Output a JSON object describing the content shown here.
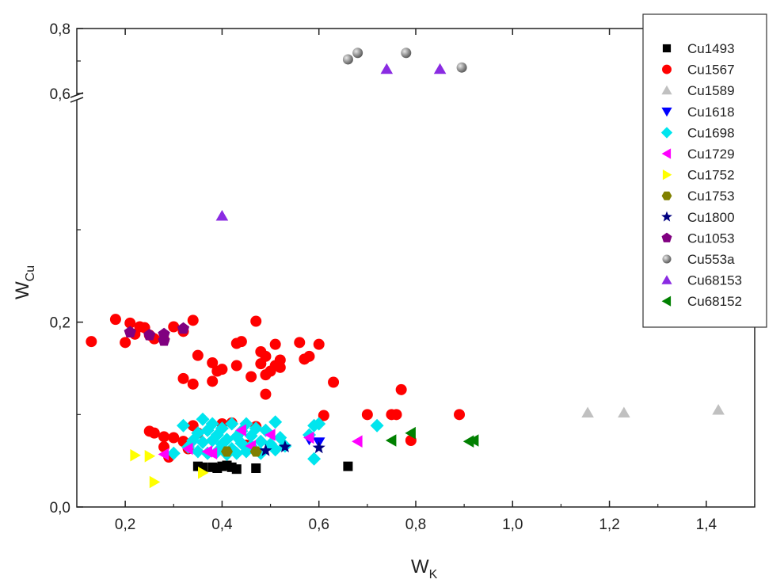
{
  "chart_data": {
    "type": "scatter",
    "xlabel": {
      "main": "W",
      "sub": "K"
    },
    "ylabel": {
      "main": "W",
      "sub": "Cu"
    },
    "xlim": [
      0.1,
      1.5
    ],
    "ylim_lower": [
      0.0,
      0.42
    ],
    "ylim_upper": [
      0.6,
      0.8
    ],
    "axis_break_y": 0.6,
    "x_ticks": [
      "0,2",
      "0,4",
      "0,6",
      "0,8",
      "1,0",
      "1,2",
      "1,4"
    ],
    "x_tick_values": [
      0.2,
      0.4,
      0.6,
      0.8,
      1.0,
      1.2,
      1.4
    ],
    "y_ticks": [
      "0,0",
      "0,2",
      "0,6",
      "0,8"
    ],
    "y_tick_values": [
      0.0,
      0.2,
      0.6,
      0.8
    ],
    "grid": false,
    "legend_position": "top-right",
    "series": [
      {
        "name": "Cu1493",
        "marker": "square",
        "color": "#000000",
        "points": [
          [
            0.35,
            0.044
          ],
          [
            0.36,
            0.043
          ],
          [
            0.38,
            0.043
          ],
          [
            0.39,
            0.042
          ],
          [
            0.4,
            0.044
          ],
          [
            0.41,
            0.045
          ],
          [
            0.42,
            0.043
          ],
          [
            0.43,
            0.041
          ],
          [
            0.47,
            0.042
          ],
          [
            0.66,
            0.044
          ]
        ]
      },
      {
        "name": "Cu1567",
        "marker": "circle",
        "color": "#ff0000",
        "points": [
          [
            0.13,
            0.179
          ],
          [
            0.18,
            0.203
          ],
          [
            0.2,
            0.178
          ],
          [
            0.21,
            0.199
          ],
          [
            0.22,
            0.187
          ],
          [
            0.23,
            0.195
          ],
          [
            0.24,
            0.194
          ],
          [
            0.25,
            0.186
          ],
          [
            0.26,
            0.182
          ],
          [
            0.28,
            0.181
          ],
          [
            0.3,
            0.195
          ],
          [
            0.32,
            0.19
          ],
          [
            0.34,
            0.202
          ],
          [
            0.35,
            0.164
          ],
          [
            0.38,
            0.156
          ],
          [
            0.39,
            0.147
          ],
          [
            0.4,
            0.149
          ],
          [
            0.32,
            0.139
          ],
          [
            0.34,
            0.133
          ],
          [
            0.38,
            0.136
          ],
          [
            0.43,
            0.177
          ],
          [
            0.44,
            0.179
          ],
          [
            0.43,
            0.153
          ],
          [
            0.46,
            0.141
          ],
          [
            0.47,
            0.201
          ],
          [
            0.48,
            0.168
          ],
          [
            0.48,
            0.155
          ],
          [
            0.49,
            0.163
          ],
          [
            0.5,
            0.147
          ],
          [
            0.51,
            0.176
          ],
          [
            0.51,
            0.153
          ],
          [
            0.52,
            0.151
          ],
          [
            0.52,
            0.159
          ],
          [
            0.49,
            0.143
          ],
          [
            0.49,
            0.122
          ],
          [
            0.56,
            0.178
          ],
          [
            0.57,
            0.16
          ],
          [
            0.58,
            0.163
          ],
          [
            0.6,
            0.176
          ],
          [
            0.63,
            0.135
          ],
          [
            0.61,
            0.099
          ],
          [
            0.7,
            0.1
          ],
          [
            0.75,
            0.1
          ],
          [
            0.76,
            0.1
          ],
          [
            0.77,
            0.127
          ],
          [
            0.79,
            0.072
          ],
          [
            0.89,
            0.1
          ],
          [
            0.25,
            0.082
          ],
          [
            0.26,
            0.08
          ],
          [
            0.28,
            0.076
          ],
          [
            0.29,
            0.054
          ],
          [
            0.3,
            0.075
          ],
          [
            0.32,
            0.071
          ],
          [
            0.33,
            0.063
          ],
          [
            0.34,
            0.088
          ],
          [
            0.35,
            0.08
          ],
          [
            0.4,
            0.09
          ],
          [
            0.42,
            0.091
          ],
          [
            0.45,
            0.067
          ],
          [
            0.47,
            0.087
          ],
          [
            0.28,
            0.065
          ]
        ]
      },
      {
        "name": "Cu1589",
        "marker": "triangle-up",
        "color": "#c0c0c0",
        "points": [
          [
            1.155,
            0.102
          ],
          [
            1.23,
            0.102
          ],
          [
            1.425,
            0.105
          ]
        ]
      },
      {
        "name": "Cu1618",
        "marker": "triangle-down",
        "color": "#0000ff",
        "points": [
          [
            0.6,
            0.07
          ],
          [
            0.58,
            0.073
          ]
        ]
      },
      {
        "name": "Cu1698",
        "marker": "diamond",
        "color": "#00e5ee",
        "points": [
          [
            0.3,
            0.058
          ],
          [
            0.32,
            0.088
          ],
          [
            0.33,
            0.065
          ],
          [
            0.34,
            0.072
          ],
          [
            0.35,
            0.08
          ],
          [
            0.35,
            0.06
          ],
          [
            0.36,
            0.095
          ],
          [
            0.36,
            0.07
          ],
          [
            0.37,
            0.083
          ],
          [
            0.37,
            0.058
          ],
          [
            0.38,
            0.09
          ],
          [
            0.38,
            0.072
          ],
          [
            0.39,
            0.078
          ],
          [
            0.39,
            0.06
          ],
          [
            0.4,
            0.085
          ],
          [
            0.4,
            0.068
          ],
          [
            0.41,
            0.073
          ],
          [
            0.41,
            0.057
          ],
          [
            0.42,
            0.09
          ],
          [
            0.42,
            0.063
          ],
          [
            0.43,
            0.076
          ],
          [
            0.43,
            0.058
          ],
          [
            0.44,
            0.082
          ],
          [
            0.44,
            0.069
          ],
          [
            0.45,
            0.09
          ],
          [
            0.45,
            0.06
          ],
          [
            0.46,
            0.077
          ],
          [
            0.46,
            0.066
          ],
          [
            0.47,
            0.085
          ],
          [
            0.48,
            0.071
          ],
          [
            0.48,
            0.058
          ],
          [
            0.49,
            0.083
          ],
          [
            0.5,
            0.068
          ],
          [
            0.51,
            0.092
          ],
          [
            0.51,
            0.062
          ],
          [
            0.52,
            0.075
          ],
          [
            0.53,
            0.066
          ],
          [
            0.58,
            0.078
          ],
          [
            0.59,
            0.088
          ],
          [
            0.59,
            0.052
          ],
          [
            0.6,
            0.09
          ],
          [
            0.72,
            0.088
          ]
        ]
      },
      {
        "name": "Cu1729",
        "marker": "triangle-left",
        "color": "#ff00ff",
        "points": [
          [
            0.28,
            0.057
          ],
          [
            0.33,
            0.063
          ],
          [
            0.37,
            0.06
          ],
          [
            0.38,
            0.058
          ],
          [
            0.44,
            0.083
          ],
          [
            0.46,
            0.066
          ],
          [
            0.5,
            0.078
          ],
          [
            0.58,
            0.075
          ],
          [
            0.68,
            0.071
          ]
        ]
      },
      {
        "name": "Cu1752",
        "marker": "triangle-right",
        "color": "#ffff00",
        "points": [
          [
            0.22,
            0.056
          ],
          [
            0.25,
            0.055
          ],
          [
            0.26,
            0.027
          ],
          [
            0.36,
            0.037
          ]
        ]
      },
      {
        "name": "Cu1753",
        "marker": "hexagon",
        "color": "#808000",
        "points": [
          [
            0.41,
            0.06
          ],
          [
            0.47,
            0.06
          ]
        ]
      },
      {
        "name": "Cu1800",
        "marker": "star",
        "color": "#000080",
        "points": [
          [
            0.49,
            0.061
          ],
          [
            0.53,
            0.065
          ],
          [
            0.6,
            0.064
          ]
        ]
      },
      {
        "name": "Cu1053",
        "marker": "pentagon",
        "color": "#800080",
        "points": [
          [
            0.21,
            0.189
          ],
          [
            0.25,
            0.186
          ],
          [
            0.28,
            0.187
          ],
          [
            0.28,
            0.18
          ],
          [
            0.32,
            0.193
          ]
        ]
      },
      {
        "name": "Cu553a",
        "marker": "sphere",
        "color": "#808080",
        "points": [
          [
            0.66,
            0.705
          ],
          [
            0.68,
            0.725
          ],
          [
            0.78,
            0.725
          ],
          [
            0.895,
            0.68
          ]
        ]
      },
      {
        "name": "Cu68153",
        "marker": "triangle-up",
        "color": "#8a2be2",
        "points": [
          [
            0.74,
            0.675
          ],
          [
            0.85,
            0.675
          ],
          [
            0.4,
            0.315
          ]
        ]
      },
      {
        "name": "Cu68152",
        "marker": "triangle-left",
        "color": "#008000",
        "points": [
          [
            0.75,
            0.072
          ],
          [
            0.79,
            0.08
          ],
          [
            0.92,
            0.072
          ],
          [
            0.91,
            0.071
          ]
        ]
      }
    ]
  }
}
